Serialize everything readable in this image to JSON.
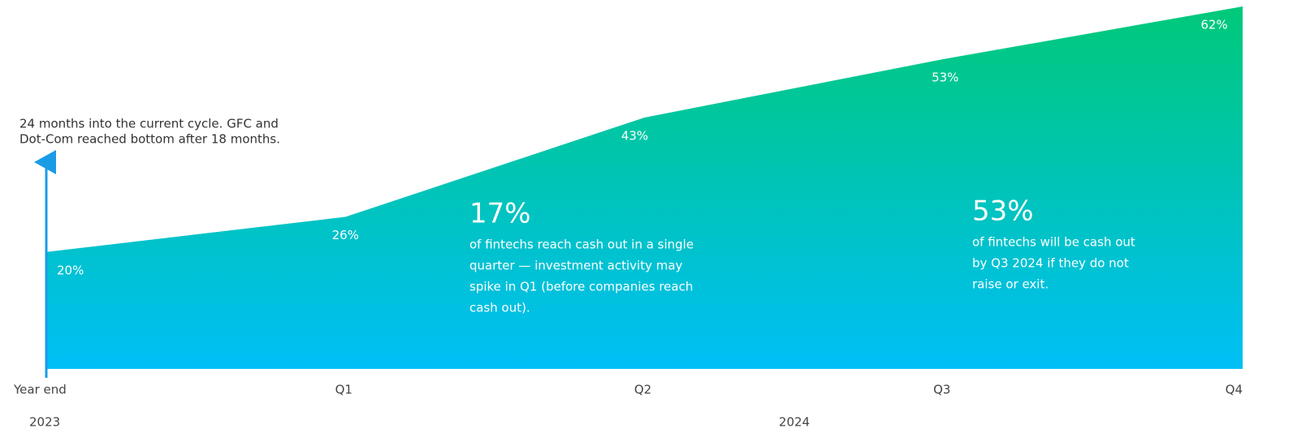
{
  "chart_data": {
    "type": "area",
    "categories": [
      "Year end",
      "Q1",
      "Q2",
      "Q3",
      "Q4"
    ],
    "x_group_labels": [
      "2023",
      "2024"
    ],
    "values": [
      20,
      26,
      43,
      53,
      62
    ],
    "value_labels": [
      "20%",
      "26%",
      "43%",
      "53%",
      "62%"
    ],
    "ylim": [
      0,
      62
    ],
    "color_top": "#00c979",
    "color_bottom": "#00bff7",
    "annotation": [
      "24 months into the current cycle. GFC and",
      "Dot-Com reached bottom after 18 months."
    ],
    "callouts": [
      {
        "headline": "17%",
        "lines": [
          "of fintechs reach cash out in a single",
          "quarter — investment activity may",
          "spike in Q1 (before companies reach",
          "cash out)."
        ]
      },
      {
        "headline": "53%",
        "lines": [
          "of fintechs will be cash out",
          "by Q3 2024 if they do not",
          "raise or exit."
        ]
      }
    ]
  }
}
